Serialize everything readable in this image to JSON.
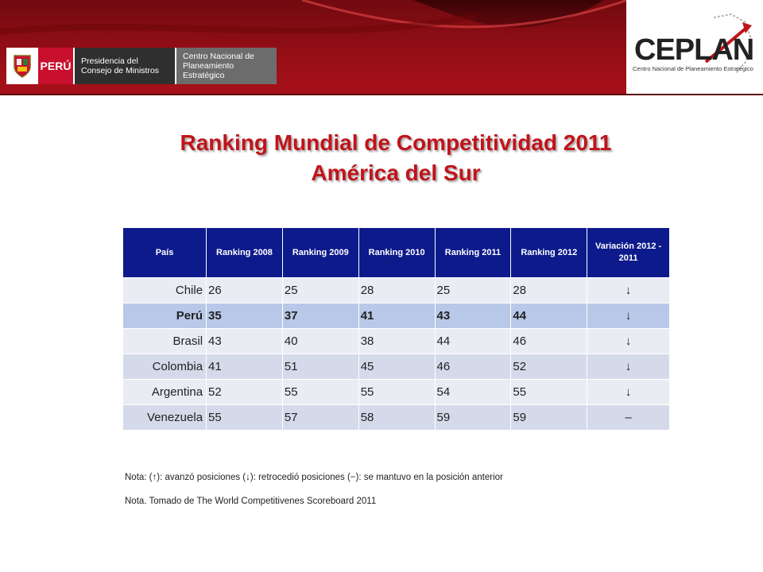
{
  "header": {
    "peru_label": "PERÚ",
    "pcm_label": "Presidencia del\nConsejo de Ministros",
    "ceplan_label": "Centro Nacional de\nPlaneamiento Estratégico",
    "logo_word": "CEPLAN",
    "logo_subtitle": "Centro Nacional de Planeamiento Estratégico"
  },
  "title": {
    "line1": "Ranking Mundial de Competitividad 2011",
    "line2": "América del Sur"
  },
  "table": {
    "headers": [
      "País",
      "Ranking 2008",
      "Ranking 2009",
      "Ranking 2010",
      "Ranking 2011",
      "Ranking 2012",
      "Variación 2012 - 2011"
    ],
    "rows": [
      {
        "country": "Chile",
        "values": [
          "26",
          "25",
          "28",
          "25",
          "28"
        ],
        "variation": "↓"
      },
      {
        "country": "Perú",
        "values": [
          "35",
          "37",
          "41",
          "43",
          "44"
        ],
        "variation": "↓"
      },
      {
        "country": "Brasil",
        "values": [
          "43",
          "40",
          "38",
          "44",
          "46"
        ],
        "variation": "↓"
      },
      {
        "country": "Colombia",
        "values": [
          "41",
          "51",
          "45",
          "46",
          "52"
        ],
        "variation": "↓"
      },
      {
        "country": "Argentina",
        "values": [
          "52",
          "55",
          "55",
          "54",
          "55"
        ],
        "variation": "↓"
      },
      {
        "country": "Venezuela",
        "values": [
          "55",
          "57",
          "58",
          "59",
          "59"
        ],
        "variation": "–"
      }
    ]
  },
  "notes": {
    "legend": "Nota: (↑): avanzó posiciones    (↓): retrocedió posiciones    (−): se mantuvo en la posición anterior",
    "source": "Nota.  Tomado de The World Competitivenes Scoreboard 2011"
  },
  "colors": {
    "title": "#c0141b",
    "table_header": "#0d1a8c",
    "banner": "#9b0d14"
  }
}
